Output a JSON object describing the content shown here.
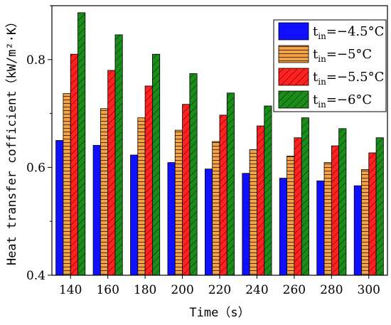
{
  "chart_data": {
    "type": "bar",
    "xlabel": "Time（s）",
    "ylabel": "Heat transfer cofficient（kW/m²·K）",
    "ylim": [
      0.4,
      0.9
    ],
    "yticks": [
      "0.4",
      "0.6",
      "0.8"
    ],
    "categories": [
      "140",
      "160",
      "180",
      "200",
      "220",
      "240",
      "260",
      "280",
      "300"
    ],
    "legend_position": "top-right",
    "series": [
      {
        "name": "t_in=−4.5°C",
        "color": "#1010ff",
        "pattern": "solid",
        "values": [
          0.65,
          0.641,
          0.623,
          0.609,
          0.597,
          0.589,
          0.58,
          0.575,
          0.566
        ]
      },
      {
        "name": "t_in=−5°C",
        "color": "#f4a242",
        "pattern": "horizontal",
        "values": [
          0.737,
          0.709,
          0.692,
          0.669,
          0.648,
          0.633,
          0.621,
          0.609,
          0.596
        ]
      },
      {
        "name": "t_in=−5.5°C",
        "color": "#ff2020",
        "pattern": "diagonal",
        "values": [
          0.81,
          0.78,
          0.751,
          0.717,
          0.697,
          0.677,
          0.655,
          0.64,
          0.627
        ]
      },
      {
        "name": "t_in=−6°C",
        "color": "#1a8c1a",
        "pattern": "diagonal",
        "values": [
          0.887,
          0.846,
          0.81,
          0.774,
          0.738,
          0.714,
          0.692,
          0.672,
          0.655
        ]
      }
    ],
    "legend": [
      {
        "prefix": "t",
        "sub": "in",
        "suffix": "=−4.5°C"
      },
      {
        "prefix": "t",
        "sub": "in",
        "suffix": "=−5°C"
      },
      {
        "prefix": "t",
        "sub": "in",
        "suffix": "=−5.5°C"
      },
      {
        "prefix": "t",
        "sub": "in",
        "suffix": "=−6°C"
      }
    ]
  }
}
